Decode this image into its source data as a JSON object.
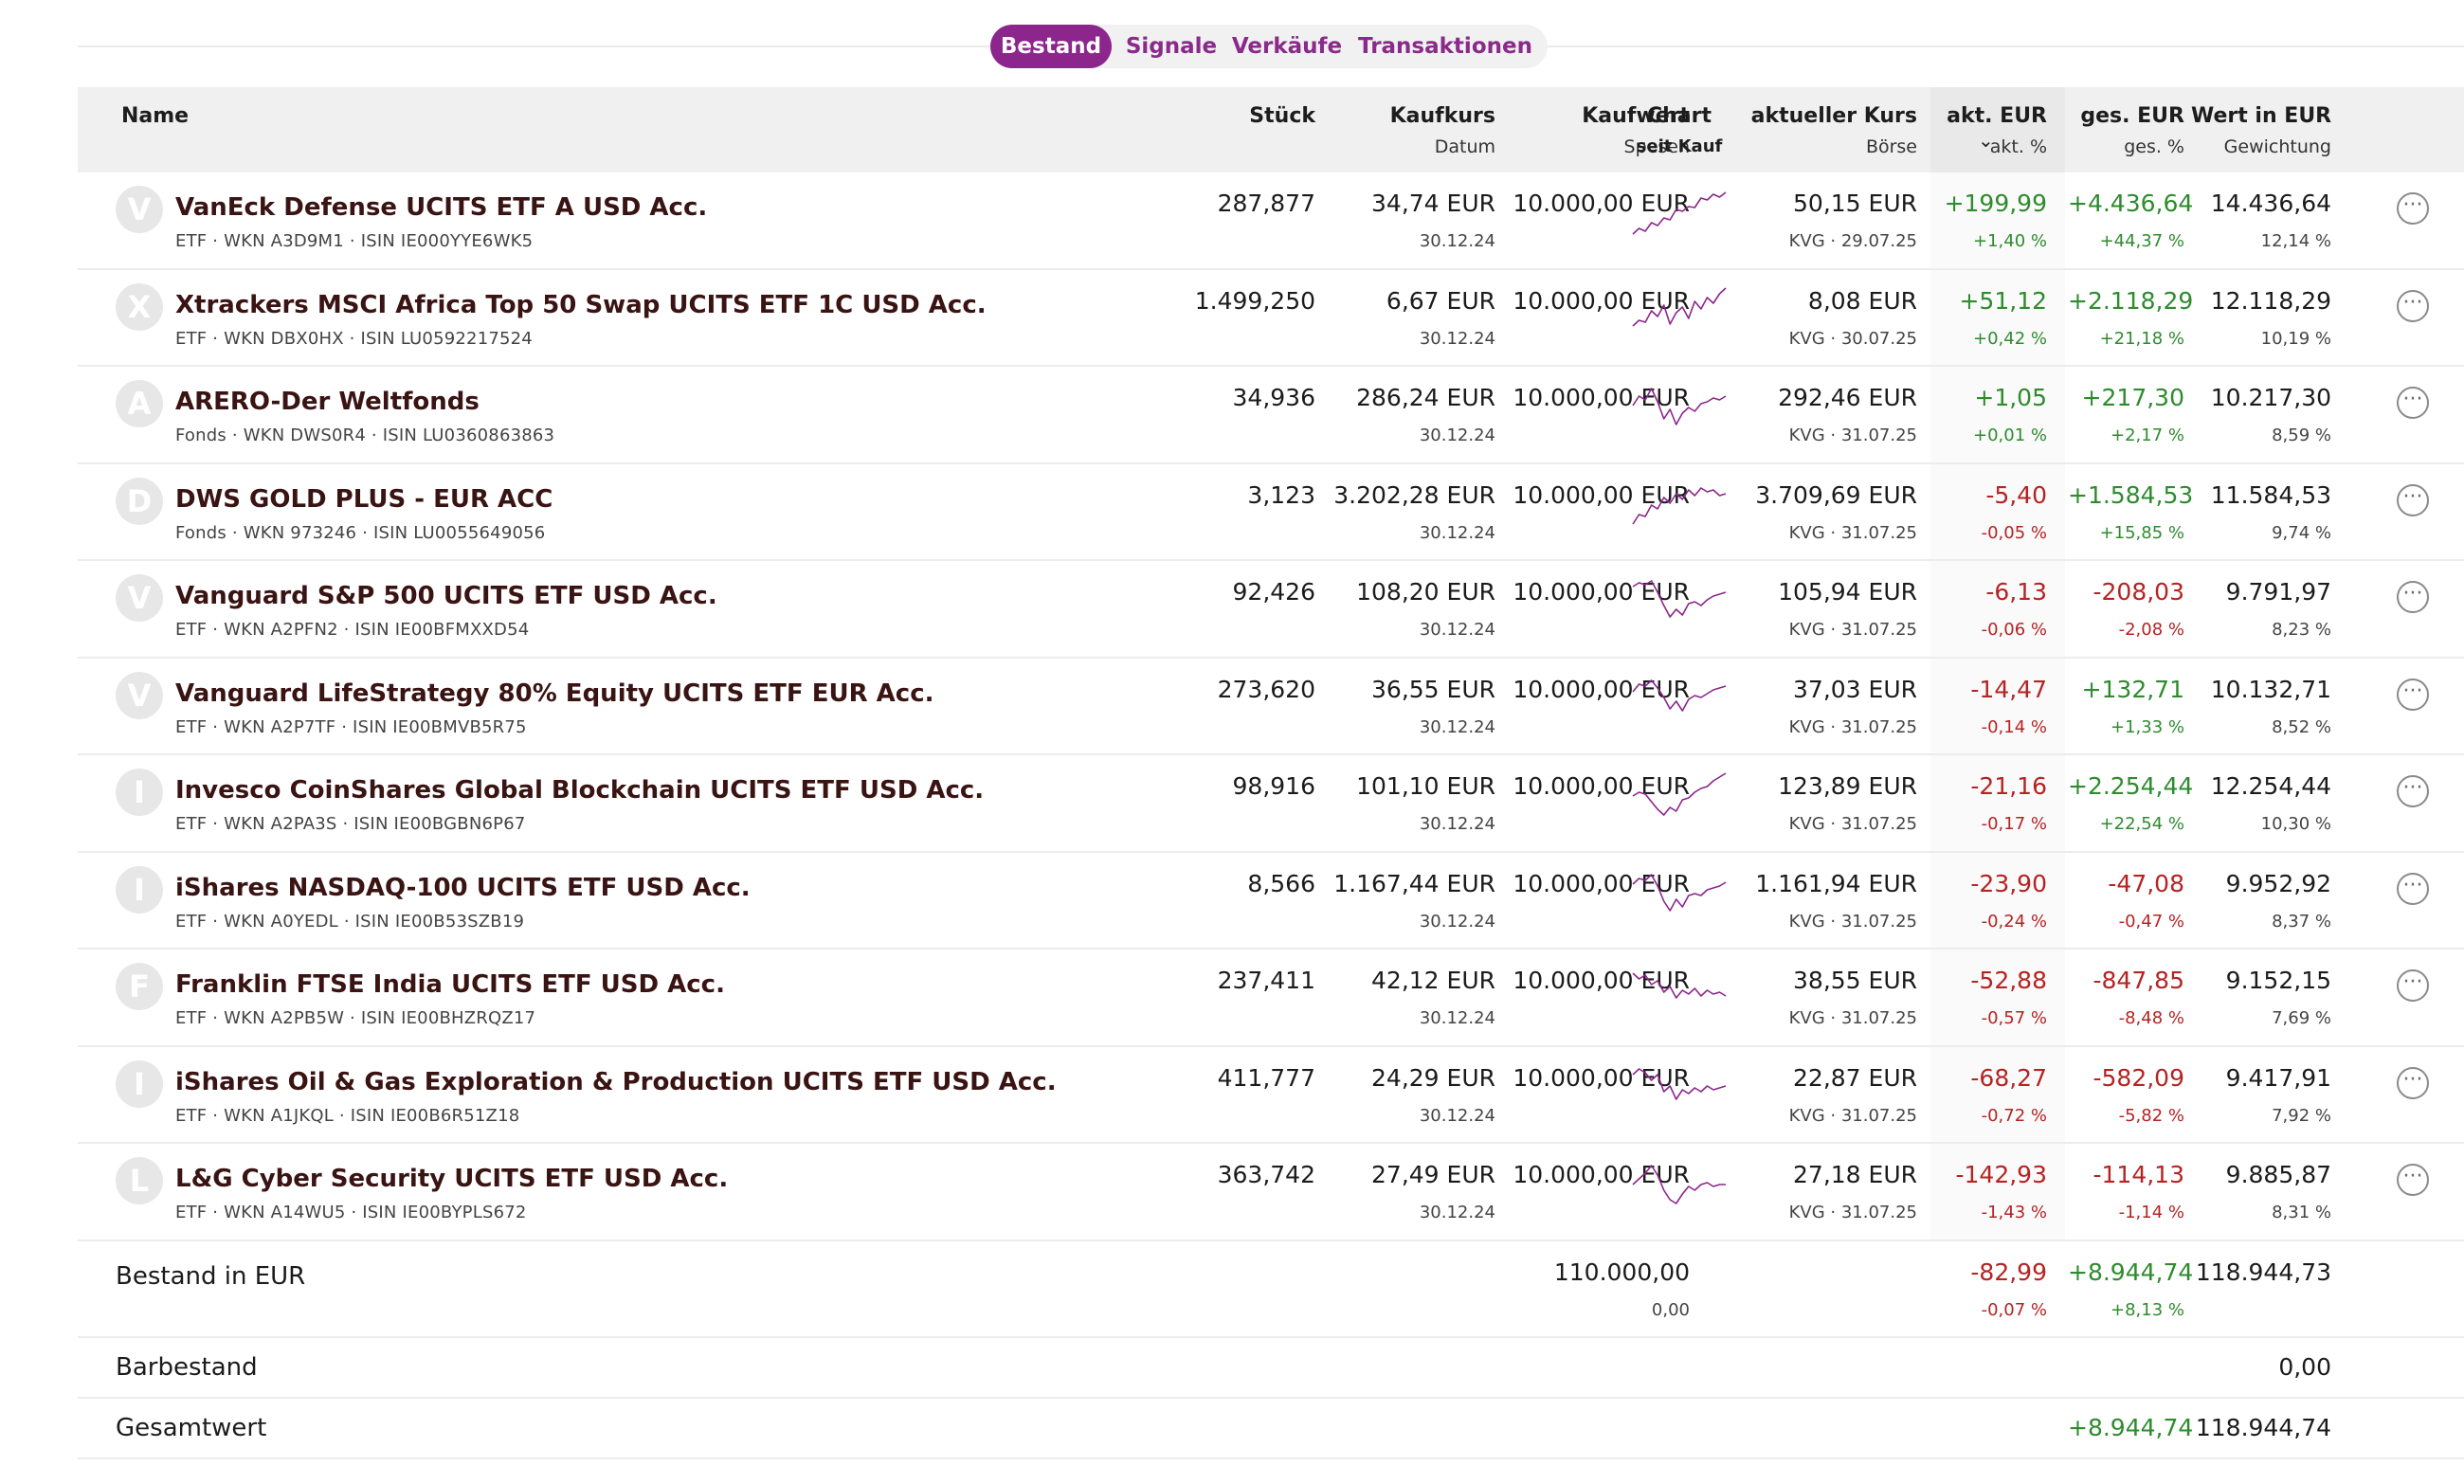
{
  "tabs": [
    {
      "label": "Bestand",
      "active": true
    },
    {
      "label": "Signale",
      "active": false
    },
    {
      "label": "Verkäufe",
      "active": false
    },
    {
      "label": "Transaktionen",
      "active": false
    }
  ],
  "header": {
    "name": "Name",
    "stueck": "Stück",
    "kaufkurs": "Kaufkurs",
    "datum": "Datum",
    "kaufwert": "Kaufwert",
    "spesen": "Spesen",
    "chart": "Chart",
    "seit_kauf": "seit Kauf",
    "aktueller_kurs": "aktueller Kurs",
    "boerse": "Börse",
    "akt_eur": "akt. EUR",
    "akt_pct": "akt. %",
    "ges_eur": "ges. EUR",
    "ges_pct": "ges. %",
    "wert": "Wert in EUR",
    "gewichtung": "Gewichtung"
  },
  "colors": {
    "accent": "#8c268c",
    "positive": "#2e8b2e",
    "negative": "#b52323",
    "sparkline": "#8c268c"
  },
  "rows": [
    {
      "initial": "V",
      "name": "VanEck Defense UCITS ETF A USD Acc.",
      "meta": "ETF · WKN A3D9M1 · ISIN IE000YYE6WK5",
      "stueck": "287,877",
      "kaufkurs": "34,74 EUR",
      "datum": "30.12.24",
      "kaufwert": "10.000,00 EUR",
      "kurs": "50,15 EUR",
      "boerse": "KVG · 29.07.25",
      "akt_eur": "+199,99",
      "akt_pct": "+1,40 %",
      "akt_sign": "pos",
      "ges_eur": "+4.436,64",
      "ges_pct": "+44,37 %",
      "ges_sign": "pos",
      "wert": "14.436,64",
      "gewichtung": "12,14 %",
      "spark": [
        2,
        8,
        5,
        14,
        11,
        19,
        17,
        28,
        26,
        31,
        30,
        40,
        38,
        44,
        41,
        46
      ]
    },
    {
      "initial": "X",
      "name": "Xtrackers MSCI Africa Top 50 Swap UCITS ETF 1C USD Acc.",
      "meta": "ETF · WKN DBX0HX · ISIN LU0592217524",
      "stueck": "1.499,250",
      "kaufkurs": "6,67 EUR",
      "datum": "30.12.24",
      "kaufwert": "10.000,00 EUR",
      "kurs": "8,08 EUR",
      "boerse": "KVG · 30.07.25",
      "akt_eur": "+51,12",
      "akt_pct": "+0,42 %",
      "akt_sign": "pos",
      "ges_eur": "+2.118,29",
      "ges_pct": "+21,18 %",
      "ges_sign": "pos",
      "wert": "12.118,29",
      "gewichtung": "10,19 %",
      "spark": [
        8,
        14,
        12,
        24,
        18,
        30,
        10,
        22,
        28,
        16,
        34,
        26,
        38,
        32,
        42,
        48
      ]
    },
    {
      "initial": "A",
      "name": "ARERO-Der Weltfonds",
      "meta": "Fonds · WKN DWS0R4 · ISIN LU0360863863",
      "stueck": "34,936",
      "kaufkurs": "286,24 EUR",
      "datum": "30.12.24",
      "kaufwert": "10.000,00 EUR",
      "kurs": "292,46 EUR",
      "boerse": "KVG · 31.07.25",
      "akt_eur": "+1,05",
      "akt_pct": "+0,01 %",
      "akt_sign": "pos",
      "ges_eur": "+217,30",
      "ges_pct": "+2,17 %",
      "ges_sign": "pos",
      "wert": "10.217,30",
      "gewichtung": "8,59 %",
      "spark": [
        26,
        36,
        32,
        44,
        30,
        12,
        22,
        6,
        18,
        24,
        20,
        28,
        30,
        34,
        32,
        36
      ]
    },
    {
      "initial": "D",
      "name": "DWS GOLD PLUS - EUR ACC",
      "meta": "Fonds · WKN 973246 · ISIN LU0055649056",
      "stueck": "3,123",
      "kaufkurs": "3.202,28 EUR",
      "datum": "30.12.24",
      "kaufwert": "10.000,00 EUR",
      "kurs": "3.709,69 EUR",
      "boerse": "KVG · 31.07.25",
      "akt_eur": "-5,40",
      "akt_pct": "-0,05 %",
      "akt_sign": "neg",
      "ges_eur": "+1.584,53",
      "ges_pct": "+15,85 %",
      "ges_sign": "pos",
      "wert": "11.584,53",
      "gewichtung": "9,74 %",
      "spark": [
        4,
        14,
        12,
        24,
        20,
        32,
        26,
        36,
        30,
        40,
        34,
        42,
        38,
        40,
        34,
        36
      ]
    },
    {
      "initial": "V",
      "name": "Vanguard S&P 500 UCITS ETF USD Acc.",
      "meta": "ETF · WKN A2PFN2 · ISIN IE00BFMXXD54",
      "stueck": "92,426",
      "kaufkurs": "108,20 EUR",
      "datum": "30.12.24",
      "kaufwert": "10.000,00 EUR",
      "kurs": "105,94 EUR",
      "boerse": "KVG · 31.07.25",
      "akt_eur": "-6,13",
      "akt_pct": "-0,06 %",
      "akt_sign": "neg",
      "ges_eur": "-208,03",
      "ges_pct": "-2,08 %",
      "ges_sign": "neg",
      "wert": "9.791,97",
      "gewichtung": "8,23 %",
      "spark": [
        40,
        44,
        42,
        46,
        34,
        20,
        8,
        16,
        10,
        22,
        24,
        20,
        26,
        30,
        32,
        34
      ]
    },
    {
      "initial": "V",
      "name": "Vanguard LifeStrategy 80% Equity UCITS ETF EUR Acc.",
      "meta": "ETF · WKN A2P7TF · ISIN IE00BMVB5R75",
      "stueck": "273,620",
      "kaufkurs": "36,55 EUR",
      "datum": "30.12.24",
      "kaufwert": "10.000,00 EUR",
      "kurs": "37,03 EUR",
      "boerse": "KVG · 31.07.25",
      "akt_eur": "-14,47",
      "akt_pct": "-0,14 %",
      "akt_sign": "neg",
      "ges_eur": "+132,71",
      "ges_pct": "+1,33 %",
      "ges_sign": "pos",
      "wert": "10.132,71",
      "gewichtung": "8,52 %",
      "spark": [
        32,
        40,
        38,
        44,
        36,
        26,
        14,
        22,
        12,
        24,
        28,
        26,
        30,
        34,
        36,
        38
      ]
    },
    {
      "initial": "I",
      "name": "Invesco CoinShares Global Blockchain UCITS ETF USD Acc.",
      "meta": "ETF · WKN A2PA3S · ISIN IE00BGBN6P67",
      "stueck": "98,916",
      "kaufkurs": "101,10 EUR",
      "datum": "30.12.24",
      "kaufwert": "10.000,00 EUR",
      "kurs": "123,89 EUR",
      "boerse": "KVG · 31.07.25",
      "akt_eur": "-21,16",
      "akt_pct": "-0,17 %",
      "akt_sign": "neg",
      "ges_eur": "+2.254,44",
      "ges_pct": "+22,54 %",
      "ges_sign": "pos",
      "wert": "12.254,44",
      "gewichtung": "10,30 %",
      "spark": [
        24,
        28,
        26,
        18,
        10,
        4,
        12,
        8,
        20,
        22,
        28,
        32,
        34,
        40,
        44,
        48
      ]
    },
    {
      "initial": "I",
      "name": "iShares NASDAQ-100 UCITS ETF USD Acc.",
      "meta": "ETF · WKN A0YEDL · ISIN IE00B53SZB19",
      "stueck": "8,566",
      "kaufkurs": "1.167,44 EUR",
      "datum": "30.12.24",
      "kaufwert": "10.000,00 EUR",
      "kurs": "1.161,94 EUR",
      "boerse": "KVG · 31.07.25",
      "akt_eur": "-23,90",
      "akt_pct": "-0,24 %",
      "akt_sign": "neg",
      "ges_eur": "-47,08",
      "ges_pct": "-0,47 %",
      "ges_sign": "neg",
      "wert": "9.952,92",
      "gewichtung": "8,37 %",
      "spark": [
        34,
        40,
        38,
        44,
        32,
        16,
        6,
        18,
        10,
        22,
        24,
        22,
        28,
        30,
        32,
        36
      ]
    },
    {
      "initial": "F",
      "name": "Franklin FTSE India UCITS ETF USD Acc.",
      "meta": "ETF · WKN A2PB5W · ISIN IE00BHZRQZ17",
      "stueck": "237,411",
      "kaufkurs": "42,12 EUR",
      "datum": "30.12.24",
      "kaufwert": "10.000,00 EUR",
      "kurs": "38,55 EUR",
      "boerse": "KVG · 31.07.25",
      "akt_eur": "-52,88",
      "akt_pct": "-0,57 %",
      "akt_sign": "neg",
      "ges_eur": "-847,85",
      "ges_pct": "-8,48 %",
      "ges_sign": "neg",
      "wert": "9.152,15",
      "gewichtung": "7,69 %",
      "spark": [
        42,
        36,
        40,
        30,
        34,
        22,
        28,
        16,
        24,
        20,
        26,
        18,
        24,
        20,
        22,
        18
      ]
    },
    {
      "initial": "I",
      "name": "iShares Oil & Gas Exploration & Production UCITS ETF USD Acc.",
      "meta": "ETF · WKN A1JKQL · ISIN IE00B6R51Z18",
      "stueck": "411,777",
      "kaufkurs": "24,29 EUR",
      "datum": "30.12.24",
      "kaufwert": "10.000,00 EUR",
      "kurs": "22,87 EUR",
      "boerse": "KVG · 31.07.25",
      "akt_eur": "-68,27",
      "akt_pct": "-0,72 %",
      "akt_sign": "neg",
      "ges_eur": "-582,09",
      "ges_pct": "-5,82 %",
      "ges_sign": "neg",
      "wert": "9.417,91",
      "gewichtung": "7,92 %",
      "spark": [
        38,
        44,
        40,
        32,
        38,
        20,
        26,
        12,
        22,
        18,
        24,
        20,
        26,
        22,
        24,
        26
      ]
    },
    {
      "initial": "L",
      "name": "L&G Cyber Security UCITS ETF USD Acc.",
      "meta": "ETF · WKN A14WU5 · ISIN IE00BYPLS672",
      "stueck": "363,742",
      "kaufkurs": "27,49 EUR",
      "datum": "30.12.24",
      "kaufwert": "10.000,00 EUR",
      "kurs": "27,18 EUR",
      "boerse": "KVG · 31.07.25",
      "akt_eur": "-142,93",
      "akt_pct": "-1,43 %",
      "akt_sign": "neg",
      "ges_eur": "-114,13",
      "ges_pct": "-1,14 %",
      "ges_sign": "neg",
      "wert": "9.885,87",
      "gewichtung": "8,31 %",
      "spark": [
        24,
        30,
        36,
        44,
        34,
        18,
        8,
        4,
        14,
        22,
        18,
        24,
        26,
        22,
        24,
        24
      ]
    }
  ],
  "summary": {
    "bestand": {
      "label": "Bestand in EUR",
      "kaufwert": "110.000,00",
      "spesen": "0,00",
      "akt_eur": "-82,99",
      "akt_pct": "-0,07 %",
      "ges_eur": "+8.944,74",
      "ges_pct": "+8,13 %",
      "wert": "118.944,73"
    },
    "barbestand": {
      "label": "Barbestand",
      "wert": "0,00"
    },
    "gesamtwert": {
      "label": "Gesamtwert",
      "ges_eur": "+8.944,74",
      "wert": "118.944,74"
    }
  }
}
